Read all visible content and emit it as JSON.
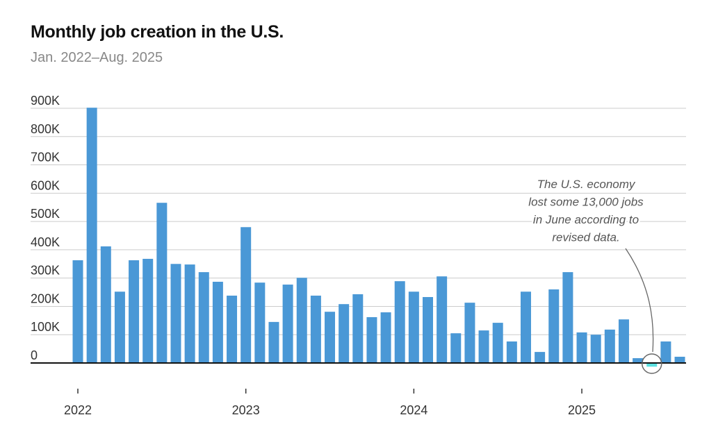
{
  "chart_data": {
    "type": "bar",
    "title": "Monthly job creation in the U.S.",
    "subtitle": "Jan. 2022–Aug. 2025",
    "xlabel": "",
    "ylabel": "",
    "ylim": [
      0,
      900
    ],
    "yticks": [
      0,
      100,
      200,
      300,
      400,
      500,
      600,
      700,
      800,
      900
    ],
    "ytick_labels": [
      "0",
      "100K",
      "200K",
      "300K",
      "400K",
      "500K",
      "600K",
      "700K",
      "800K",
      "900K"
    ],
    "xtick_labels": [
      "2022",
      "2023",
      "2024",
      "2025"
    ],
    "grid": true,
    "units": "thousands of jobs",
    "categories": [
      "2022-01",
      "2022-02",
      "2022-03",
      "2022-04",
      "2022-05",
      "2022-06",
      "2022-07",
      "2022-08",
      "2022-09",
      "2022-10",
      "2022-11",
      "2022-12",
      "2023-01",
      "2023-02",
      "2023-03",
      "2023-04",
      "2023-05",
      "2023-06",
      "2023-07",
      "2023-08",
      "2023-09",
      "2023-10",
      "2023-11",
      "2023-12",
      "2024-01",
      "2024-02",
      "2024-03",
      "2024-04",
      "2024-05",
      "2024-06",
      "2024-07",
      "2024-08",
      "2024-09",
      "2024-10",
      "2024-11",
      "2024-12",
      "2025-01",
      "2025-02",
      "2025-03",
      "2025-04",
      "2025-05",
      "2025-06",
      "2025-07",
      "2025-08"
    ],
    "values": [
      363,
      902,
      412,
      252,
      363,
      368,
      566,
      350,
      348,
      321,
      287,
      238,
      480,
      284,
      145,
      277,
      301,
      238,
      181,
      208,
      243,
      162,
      179,
      289,
      252,
      233,
      306,
      105,
      213,
      115,
      142,
      76,
      252,
      39,
      260,
      321,
      108,
      100,
      118,
      154,
      17,
      -13,
      76,
      22
    ],
    "colors": {
      "positive": "#4a98d6",
      "negative": "#5ce0e0",
      "axis": "#111111",
      "grid": "#cccccc"
    },
    "annotation": {
      "target": "2025-06",
      "lines": [
        "The U.S. economy",
        "lost some 13,000 jobs",
        "in June according to",
        "revised data."
      ]
    }
  }
}
